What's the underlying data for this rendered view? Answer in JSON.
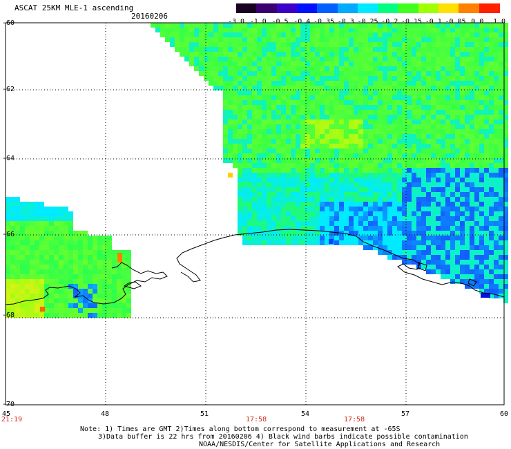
{
  "header": {
    "product_title": "ASCAT 25KM MLE-1 ascending",
    "date": "20160206"
  },
  "colorbar": {
    "labels": [
      "-3.0",
      "-1.0",
      "-0.5",
      "-0.4",
      "-0.35",
      "-0.3",
      "-0.25",
      "-0.2",
      "-0.15",
      "-0.1",
      "-0.05",
      "0.0",
      "1.0"
    ],
    "colors": [
      "#1a0022",
      "#3a006e",
      "#3d00c8",
      "#0010ff",
      "#0060ff",
      "#00aaff",
      "#00eaff",
      "#00ff80",
      "#40ff20",
      "#a0ff00",
      "#ffe000",
      "#ff8000",
      "#ff2000"
    ]
  },
  "axes": {
    "lat_labels": [
      "-60",
      "-62",
      "-64",
      "-66",
      "-68",
      "-70"
    ],
    "lon_labels": [
      "45",
      "48",
      "51",
      "54",
      "57",
      "60"
    ]
  },
  "time_labels": [
    "21:19",
    "17:58",
    "17:58"
  ],
  "notes": {
    "line1": "Note: 1) Times are GMT 2)Times along bottom correspond to measurement at -65S",
    "line2": "3)Data buffer is 22 hrs from 20160206 4) Black wind barbs indicate possible contamination",
    "line3": "NOAA/NESDIS/Center for Satellite Applications and Research"
  }
}
